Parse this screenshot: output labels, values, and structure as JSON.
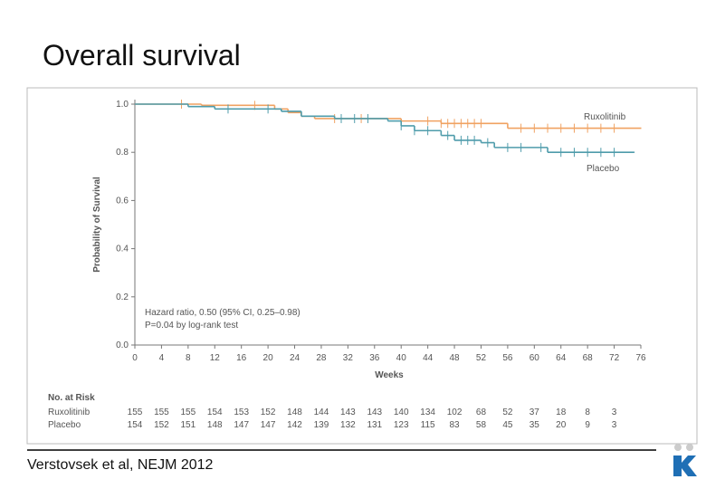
{
  "slide": {
    "title": "Overall survival",
    "footer": "Verstovsek et al, NEJM 2012"
  },
  "chart_data": {
    "type": "line",
    "step": true,
    "xlabel": "Weeks",
    "ylabel": "Probability of Survival",
    "annotations": [
      "Hazard ratio, 0.50 (95% CI, 0.25–0.98)",
      "P=0.04 by log-rank test"
    ],
    "xlim": [
      0,
      76
    ],
    "xticks": [
      0,
      4,
      8,
      12,
      16,
      20,
      24,
      28,
      32,
      36,
      40,
      44,
      48,
      52,
      56,
      60,
      64,
      68,
      72,
      76
    ],
    "ylim": [
      0,
      1
    ],
    "yticks": [
      {
        "value": 0,
        "label": "0.0"
      },
      {
        "value": 0.2,
        "label": "0.2"
      },
      {
        "value": 0.4,
        "label": "0.4"
      },
      {
        "value": 0.6,
        "label": "0.6"
      },
      {
        "value": 0.8,
        "label": "0.8"
      },
      {
        "value": 1,
        "label": "1.0"
      }
    ],
    "series": [
      {
        "name": "Ruxolitinib",
        "color": "#f0a262",
        "x": [
          0,
          10,
          21,
          23,
          25,
          27,
          40,
          46,
          56,
          76
        ],
        "values": [
          1,
          0.995,
          0.98,
          0.965,
          0.95,
          0.94,
          0.93,
          0.92,
          0.9,
          0.9
        ],
        "censored": [
          7,
          18,
          30,
          34,
          44,
          46,
          47,
          48,
          49,
          50,
          51,
          52,
          58,
          60,
          62,
          64,
          66,
          68,
          70,
          72
        ]
      },
      {
        "name": "Placebo",
        "color": "#4f9cab",
        "x": [
          0,
          8,
          12,
          22,
          25,
          30,
          38,
          40,
          42,
          46,
          48,
          52,
          54,
          62,
          75
        ],
        "values": [
          1,
          0.99,
          0.98,
          0.97,
          0.95,
          0.94,
          0.93,
          0.91,
          0.89,
          0.87,
          0.85,
          0.84,
          0.82,
          0.8,
          0.8
        ],
        "censored": [
          14,
          20,
          31,
          33,
          35,
          40,
          42,
          44,
          47,
          49,
          50,
          51,
          53,
          56,
          58,
          61,
          64,
          66,
          68,
          70,
          72
        ]
      }
    ],
    "at_risk": {
      "title": "No. at Risk",
      "x": [
        0,
        4,
        8,
        12,
        16,
        20,
        24,
        28,
        32,
        36,
        40,
        44,
        48,
        52,
        56,
        60,
        64,
        68,
        72
      ],
      "rows": [
        {
          "name": "Ruxolitinib",
          "values": [
            155,
            155,
            155,
            154,
            153,
            152,
            148,
            144,
            143,
            143,
            140,
            134,
            102,
            68,
            52,
            37,
            18,
            8,
            3
          ]
        },
        {
          "name": "Placebo",
          "values": [
            154,
            152,
            151,
            148,
            147,
            147,
            142,
            139,
            132,
            131,
            123,
            115,
            83,
            58,
            45,
            35,
            20,
            9,
            3
          ]
        }
      ]
    }
  }
}
